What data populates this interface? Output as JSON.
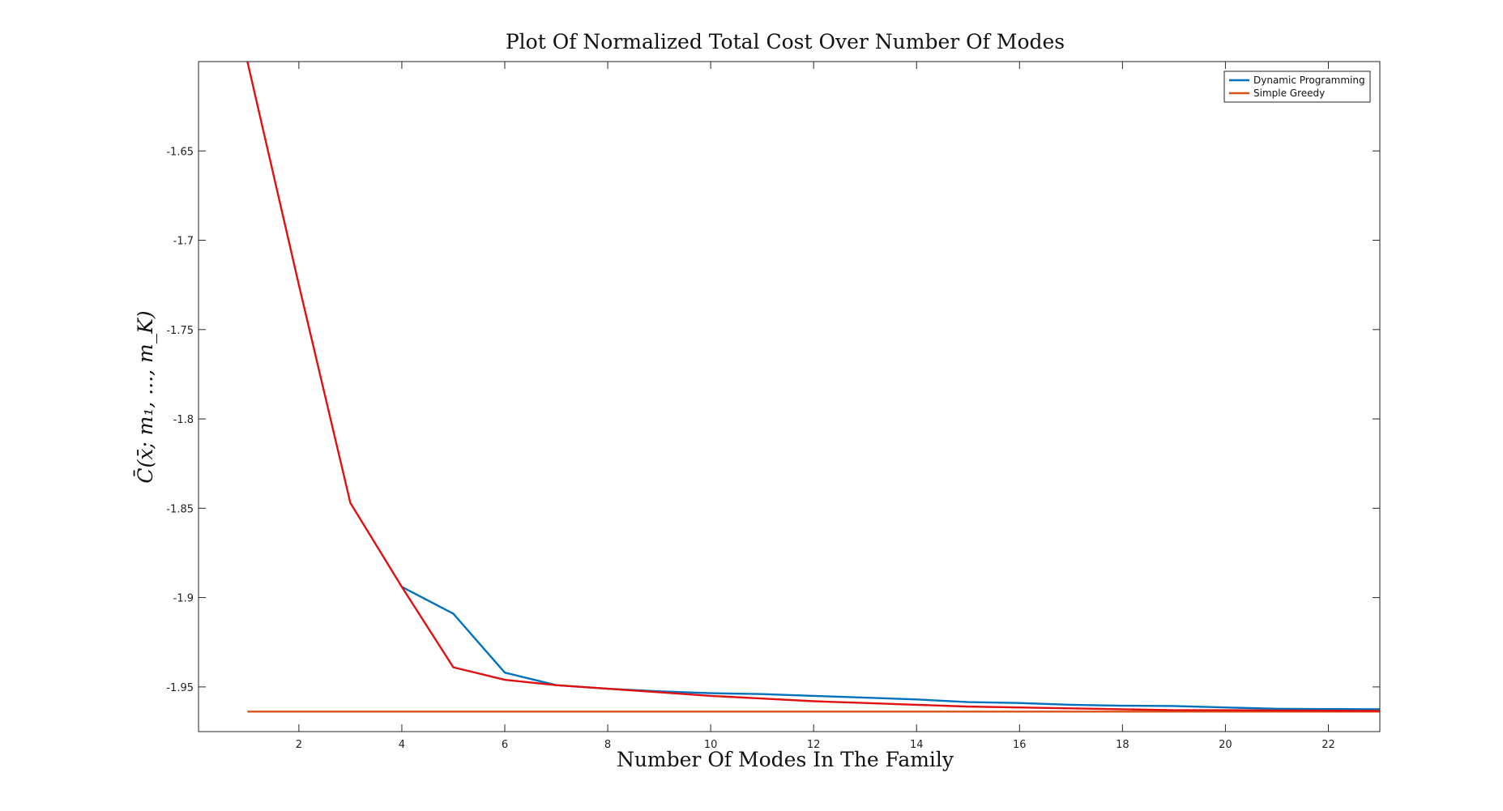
{
  "chart_data": {
    "type": "line",
    "title": "Plot Of Normalized Total Cost Over Number Of Modes",
    "xlabel": "Number Of Modes In The Family",
    "ylabel": "C̄(x̄; m₁, ..., m_K)",
    "xlim": [
      0.05,
      23
    ],
    "ylim": [
      -1.975,
      -1.6
    ],
    "xticks": [
      2,
      4,
      6,
      8,
      10,
      12,
      14,
      16,
      18,
      20,
      22
    ],
    "yticks": [
      -1.95,
      -1.9,
      -1.85,
      -1.8,
      -1.75,
      -1.7,
      -1.65
    ],
    "ytick_labels": [
      "-1.95",
      "-1.9",
      "-1.85",
      "-1.8",
      "-1.75",
      "-1.7",
      "-1.65"
    ],
    "grid": false,
    "legend_position": "top-right",
    "series": [
      {
        "name": "Dynamic Programming",
        "color": "#0072BD",
        "in_legend": true,
        "x": [
          4,
          5,
          6,
          7,
          8,
          9,
          10,
          11,
          12,
          13,
          14,
          15,
          16,
          17,
          18,
          19,
          20,
          21,
          22,
          23
        ],
        "y": [
          -1.894,
          -1.909,
          -1.942,
          -1.949,
          -1.951,
          -1.9525,
          -1.9535,
          -1.954,
          -1.955,
          -1.956,
          -1.957,
          -1.9585,
          -1.959,
          -1.96,
          -1.9605,
          -1.9607,
          -1.9615,
          -1.9622,
          -1.9624,
          -1.9625
        ]
      },
      {
        "name": "Simple Greedy",
        "color": "#D95319",
        "in_legend": true,
        "x": [
          1,
          23
        ],
        "y": [
          -1.9638,
          -1.9638
        ]
      },
      {
        "name": "",
        "color": "#E01010",
        "in_legend": false,
        "x": [
          1,
          2,
          3,
          4,
          5,
          6,
          7,
          8,
          9,
          10,
          11,
          12,
          13,
          14,
          15,
          16,
          17,
          18,
          19,
          20,
          21,
          22,
          23
        ],
        "y": [
          -1.6,
          -1.725,
          -1.847,
          -1.894,
          -1.939,
          -1.946,
          -1.949,
          -1.951,
          -1.953,
          -1.955,
          -1.9565,
          -1.958,
          -1.959,
          -1.96,
          -1.961,
          -1.9615,
          -1.962,
          -1.9625,
          -1.963,
          -1.963,
          -1.9632,
          -1.9633,
          -1.9634
        ]
      }
    ]
  }
}
